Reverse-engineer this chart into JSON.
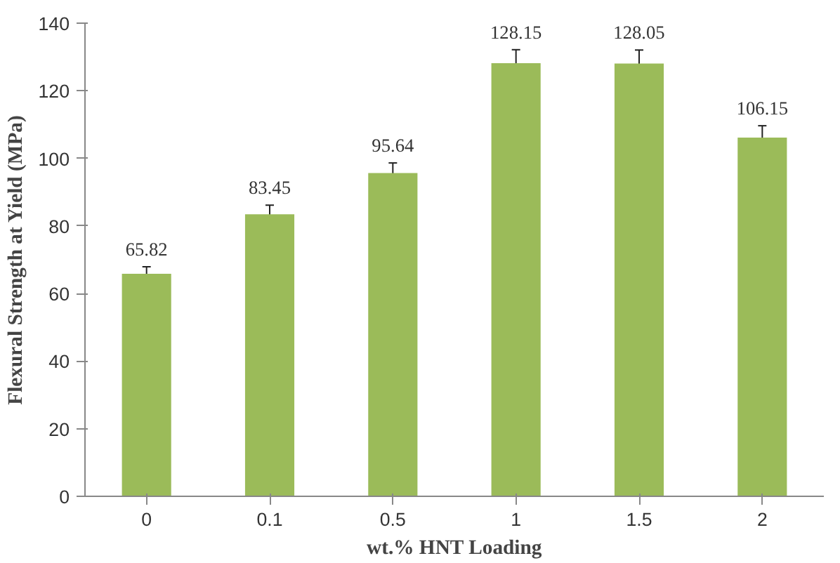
{
  "chart_data": {
    "type": "bar",
    "xlabel": "wt.% HNT Loading",
    "ylabel": "Flexural Strength at Yield (MPa)",
    "categories": [
      "0",
      "0.1",
      "0.5",
      "1",
      "1.5",
      "2"
    ],
    "values": [
      65.82,
      83.45,
      95.64,
      128.15,
      128.05,
      106.15
    ],
    "errors": [
      2.1,
      2.7,
      3,
      4,
      4,
      3.5
    ],
    "color": "#9bbb59",
    "ylim": [
      0,
      140
    ],
    "yticks": [
      0,
      20,
      40,
      60,
      80,
      100,
      120,
      140
    ],
    "data_labels": true
  }
}
